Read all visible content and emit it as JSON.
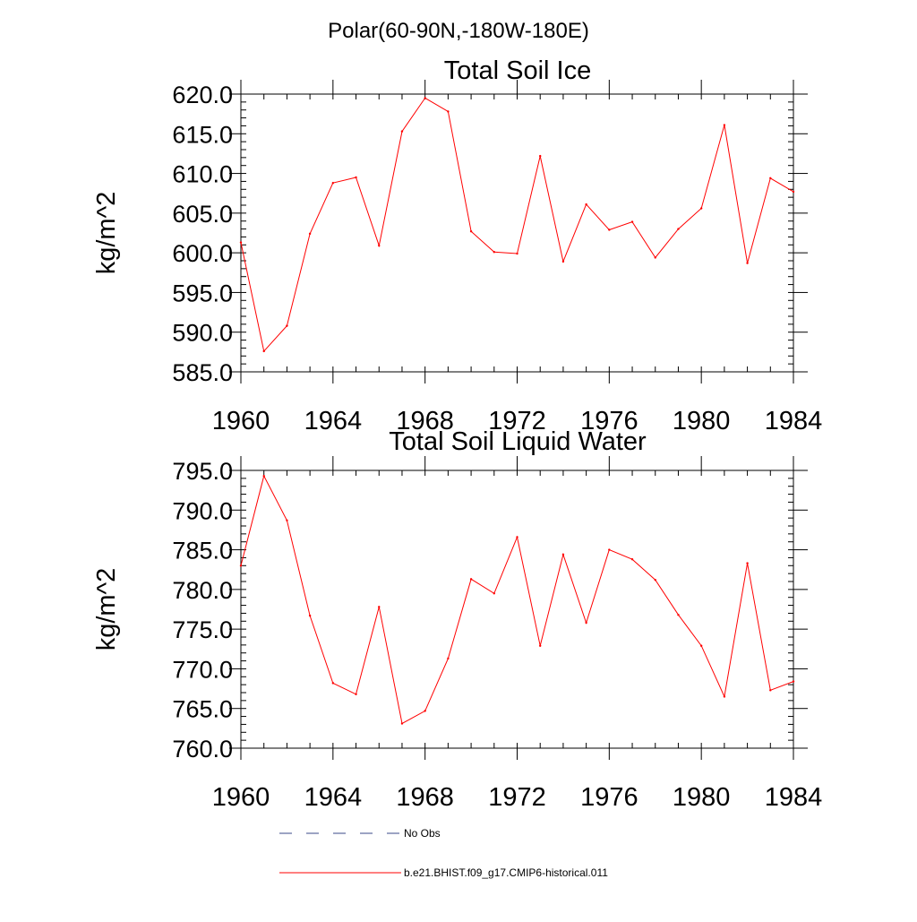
{
  "figure_title": "Polar(60-90N,-180W-180E)",
  "chart_data": [
    {
      "type": "line",
      "title": "Total Soil Ice",
      "xlabel": "",
      "ylabel": "kg/m^2",
      "xlim": [
        1960,
        1984
      ],
      "ylim": [
        585,
        620
      ],
      "x_ticks": [
        "1960",
        "1964",
        "1968",
        "1972",
        "1976",
        "1980",
        "1984"
      ],
      "y_ticks": [
        "585.0",
        "590.0",
        "595.0",
        "600.0",
        "605.0",
        "610.0",
        "615.0",
        "620.0"
      ],
      "x": [
        1960,
        1961,
        1962,
        1963,
        1964,
        1965,
        1966,
        1967,
        1968,
        1969,
        1970,
        1971,
        1972,
        1973,
        1974,
        1975,
        1976,
        1977,
        1978,
        1979,
        1980,
        1981,
        1982,
        1983,
        1984
      ],
      "series": [
        {
          "color": "#ff0000",
          "values": [
            601.3,
            587.6,
            590.8,
            602.4,
            608.8,
            609.5,
            600.9,
            615.3,
            619.5,
            617.8,
            602.7,
            600.1,
            599.9,
            612.2,
            598.9,
            606.1,
            602.9,
            603.9,
            599.4,
            603.0,
            605.6,
            616.1,
            598.7,
            609.4,
            607.7
          ]
        }
      ]
    },
    {
      "type": "line",
      "title": "Total Soil Liquid Water",
      "xlabel": "",
      "ylabel": "kg/m^2",
      "xlim": [
        1960,
        1984
      ],
      "ylim": [
        760,
        795
      ],
      "x_ticks": [
        "1960",
        "1964",
        "1968",
        "1972",
        "1976",
        "1980",
        "1984"
      ],
      "y_ticks": [
        "760.0",
        "765.0",
        "770.0",
        "775.0",
        "780.0",
        "785.0",
        "790.0",
        "795.0"
      ],
      "x": [
        1960,
        1961,
        1962,
        1963,
        1964,
        1965,
        1966,
        1967,
        1968,
        1969,
        1970,
        1971,
        1972,
        1973,
        1974,
        1975,
        1976,
        1977,
        1978,
        1979,
        1980,
        1981,
        1982,
        1983,
        1984
      ],
      "series": [
        {
          "color": "#ff0000",
          "values": [
            783.0,
            794.3,
            788.7,
            776.7,
            768.2,
            766.8,
            777.8,
            763.1,
            764.7,
            771.3,
            781.3,
            779.5,
            786.6,
            772.9,
            784.4,
            775.8,
            785.0,
            783.8,
            781.2,
            776.8,
            772.9,
            766.5,
            783.3,
            767.3,
            768.4
          ]
        }
      ]
    }
  ],
  "legend": [
    {
      "label": "No Obs",
      "color": "#3a4a8a",
      "style": "dashed"
    },
    {
      "label": "b.e21.BHIST.f09_g17.CMIP6-historical.011",
      "color": "#ff0000",
      "style": "solid"
    }
  ]
}
